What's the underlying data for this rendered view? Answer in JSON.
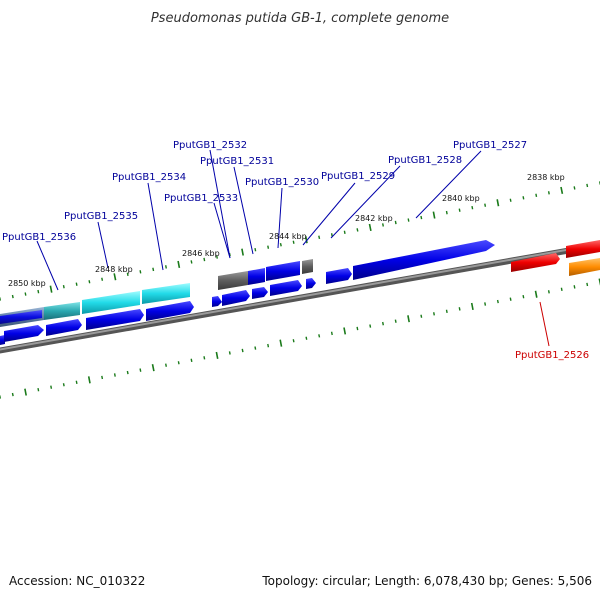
{
  "title": "Pseudomonas putida GB-1, complete genome",
  "footer": {
    "accession": "Accession: NC_010322",
    "summary": "Topology: circular; Length: 6,078,430 bp; Genes: 5,506"
  },
  "axis": {
    "tick_labels": [
      "2850 kbp",
      "2848 kbp",
      "2846 kbp",
      "2844 kbp",
      "2842 kbp",
      "2840 kbp",
      "2838 kbp"
    ]
  },
  "genes": [
    {
      "label": "PputGB1_2536",
      "color": "#0000ff"
    },
    {
      "label": "PputGB1_2535",
      "color": "#0000ff"
    },
    {
      "label": "PputGB1_2534",
      "color": "#0000ff"
    },
    {
      "label": "PputGB1_2533",
      "color": "#0000ff"
    },
    {
      "label": "PputGB1_2532",
      "color": "#0000ff"
    },
    {
      "label": "PputGB1_2531",
      "color": "#0000ff"
    },
    {
      "label": "PputGB1_2530",
      "color": "#0000ff"
    },
    {
      "label": "PputGB1_2529",
      "color": "#0000ff"
    },
    {
      "label": "PputGB1_2528",
      "color": "#0000ff"
    },
    {
      "label": "PputGB1_2527",
      "color": "#0000ff"
    },
    {
      "label": "PputGB1_2526",
      "color": "#ff0000"
    }
  ],
  "colors": {
    "backbone": "#777777",
    "ticks": "#1a7a1a",
    "cds_blue": "#0000e0",
    "cds_cyan": "#00d0e0",
    "cds_gray": "#666666",
    "cds_red": "#ee0000",
    "cds_orange": "#ff8800"
  }
}
